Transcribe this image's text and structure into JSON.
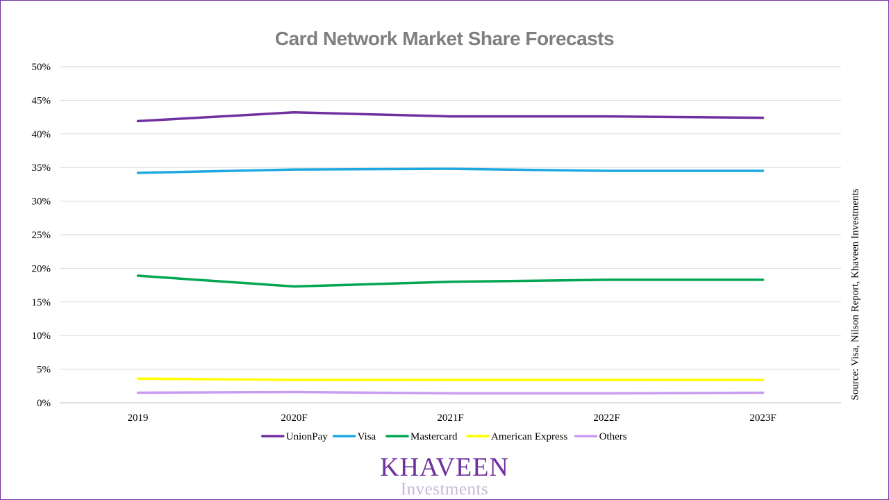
{
  "chart_data": {
    "type": "line",
    "title": "Card Network Market Share Forecasts",
    "categories": [
      "2019",
      "2020F",
      "2021F",
      "2022F",
      "2023F"
    ],
    "y_ticks": [
      "0%",
      "5%",
      "10%",
      "15%",
      "20%",
      "25%",
      "30%",
      "35%",
      "40%",
      "45%",
      "50%"
    ],
    "ylim": [
      0,
      50
    ],
    "y_unit": "%",
    "grid": true,
    "legend_position": "bottom",
    "series": [
      {
        "name": "UnionPay",
        "color": "#7030a0",
        "values": [
          41.9,
          43.2,
          42.6,
          42.6,
          42.4
        ]
      },
      {
        "name": "Visa",
        "color": "#1fa8e0",
        "values": [
          34.2,
          34.7,
          34.8,
          34.5,
          34.5
        ]
      },
      {
        "name": "Mastercard",
        "color": "#00a651",
        "values": [
          18.9,
          17.3,
          18.0,
          18.3,
          18.3
        ]
      },
      {
        "name": "American Express",
        "color": "#ffff00",
        "values": [
          3.6,
          3.4,
          3.4,
          3.4,
          3.4
        ]
      },
      {
        "name": "Others",
        "color": "#c99cf0",
        "values": [
          1.5,
          1.6,
          1.4,
          1.4,
          1.5
        ]
      }
    ]
  },
  "source": "Source: Visa, Nilson Report, Khaveen Investments",
  "brand": {
    "name": "KHAVEEN",
    "tagline": "Investments"
  }
}
